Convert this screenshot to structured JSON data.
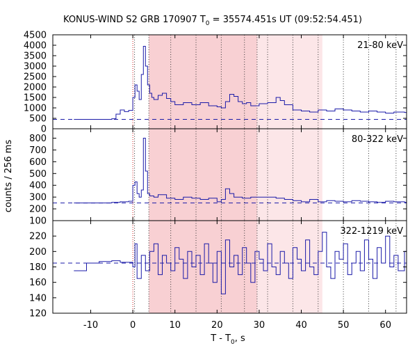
{
  "chart_data": {
    "type": "line",
    "title_prefix": "KONUS-WIND S2 GRB 170907 T",
    "title_sub": "0",
    "title_suffix": " = 35574.451s UT (09:52:54.451)",
    "xlabel_prefix": "T - T",
    "xlabel_sub": "0",
    "xlabel_suffix": ", s",
    "ylabel": "counts / 256 ms",
    "xlim": [
      -19,
      65
    ],
    "xticks": [
      -10,
      0,
      10,
      20,
      30,
      40,
      50,
      60
    ],
    "t0_line": 0,
    "shaded_regions": [
      {
        "start": 3.8,
        "end": 29.5,
        "color": "#f8d0d3"
      },
      {
        "start": 29.5,
        "end": 45.0,
        "color": "#fce6e8"
      }
    ],
    "dotted_lines": [
      0.4,
      3.8,
      9.0,
      15.0,
      21.0,
      26.5,
      29.5,
      32.0,
      38.0,
      44.0,
      50.0,
      56.0,
      62.5
    ],
    "series_color": "#1a1aa8",
    "panels": [
      {
        "band": "21-80 keV",
        "ylim": [
          0,
          4500
        ],
        "yticks": [
          0,
          500,
          1000,
          1500,
          2000,
          2500,
          3000,
          3500,
          4000,
          4500
        ],
        "background": 450,
        "x": [
          -14,
          -5,
          -4,
          -3,
          -2,
          -1,
          0,
          0.5,
          1,
          1.5,
          2,
          2.5,
          3,
          3.5,
          4,
          4.5,
          5,
          6,
          7,
          8,
          9,
          10,
          12,
          14,
          16,
          18,
          20,
          21,
          22,
          23,
          24,
          25,
          26,
          27,
          28,
          30,
          32,
          34,
          35,
          36,
          38,
          40,
          42,
          44,
          46,
          48,
          50,
          52,
          54,
          56,
          58,
          60,
          62,
          64.5
        ],
        "values": [
          450,
          480,
          700,
          900,
          820,
          880,
          1500,
          2100,
          1800,
          1400,
          2600,
          3950,
          3000,
          2100,
          1700,
          1500,
          1400,
          1600,
          1700,
          1450,
          1300,
          1150,
          1250,
          1150,
          1250,
          1100,
          1050,
          1000,
          1300,
          1650,
          1550,
          1300,
          1200,
          1250,
          1100,
          1200,
          1250,
          1500,
          1350,
          1150,
          900,
          850,
          800,
          900,
          850,
          950,
          900,
          850,
          800,
          850,
          800,
          750,
          800,
          780
        ]
      },
      {
        "band": "80-322 keV",
        "ylim": [
          100,
          880
        ],
        "yticks": [
          100,
          200,
          300,
          400,
          500,
          600,
          700,
          800
        ],
        "background": 250,
        "x": [
          -14,
          -5,
          -3,
          -1,
          0,
          0.5,
          1,
          1.5,
          2,
          2.5,
          3,
          3.5,
          4,
          5,
          6,
          8,
          10,
          12,
          14,
          16,
          18,
          20,
          21,
          22,
          23,
          24,
          26,
          28,
          30,
          32,
          34,
          36,
          38,
          40,
          42,
          44,
          46,
          48,
          50,
          52,
          54,
          56,
          58,
          60,
          62,
          64.5
        ],
        "values": [
          250,
          255,
          260,
          265,
          400,
          430,
          330,
          300,
          360,
          800,
          520,
          330,
          310,
          300,
          320,
          290,
          280,
          300,
          290,
          280,
          290,
          260,
          280,
          370,
          330,
          300,
          290,
          300,
          300,
          300,
          290,
          280,
          270,
          260,
          280,
          260,
          270,
          265,
          260,
          270,
          265,
          260,
          255,
          265,
          260,
          255
        ]
      },
      {
        "band": "322-1219 keV",
        "ylim": [
          120,
          240
        ],
        "yticks": [
          120,
          140,
          160,
          180,
          200,
          220
        ],
        "background": 185,
        "x": [
          -14,
          -11,
          -8,
          -5,
          -3,
          -1,
          0,
          0.5,
          1,
          2,
          3,
          4,
          5,
          6,
          7,
          8,
          9,
          10,
          11,
          12,
          13,
          14,
          15,
          16,
          17,
          18,
          19,
          20,
          21,
          22,
          23,
          24,
          25,
          26,
          27,
          28,
          29,
          30,
          31,
          32,
          33,
          34,
          35,
          36,
          37,
          38,
          39,
          40,
          41,
          42,
          43,
          44,
          45,
          46,
          47,
          48,
          49,
          50,
          51,
          52,
          53,
          54,
          55,
          56,
          57,
          58,
          59,
          60,
          61,
          62,
          63,
          64.5
        ],
        "values": [
          175,
          185,
          187,
          188,
          186,
          186,
          180,
          210,
          165,
          195,
          175,
          200,
          210,
          170,
          195,
          185,
          175,
          205,
          190,
          165,
          200,
          180,
          195,
          170,
          210,
          185,
          160,
          200,
          145,
          215,
          180,
          195,
          170,
          205,
          185,
          160,
          200,
          190,
          175,
          210,
          180,
          170,
          200,
          185,
          165,
          205,
          190,
          175,
          215,
          180,
          170,
          200,
          225,
          180,
          165,
          200,
          190,
          210,
          170,
          185,
          200,
          175,
          215,
          190,
          165,
          205,
          185,
          220,
          180,
          195,
          175,
          200
        ]
      }
    ]
  }
}
